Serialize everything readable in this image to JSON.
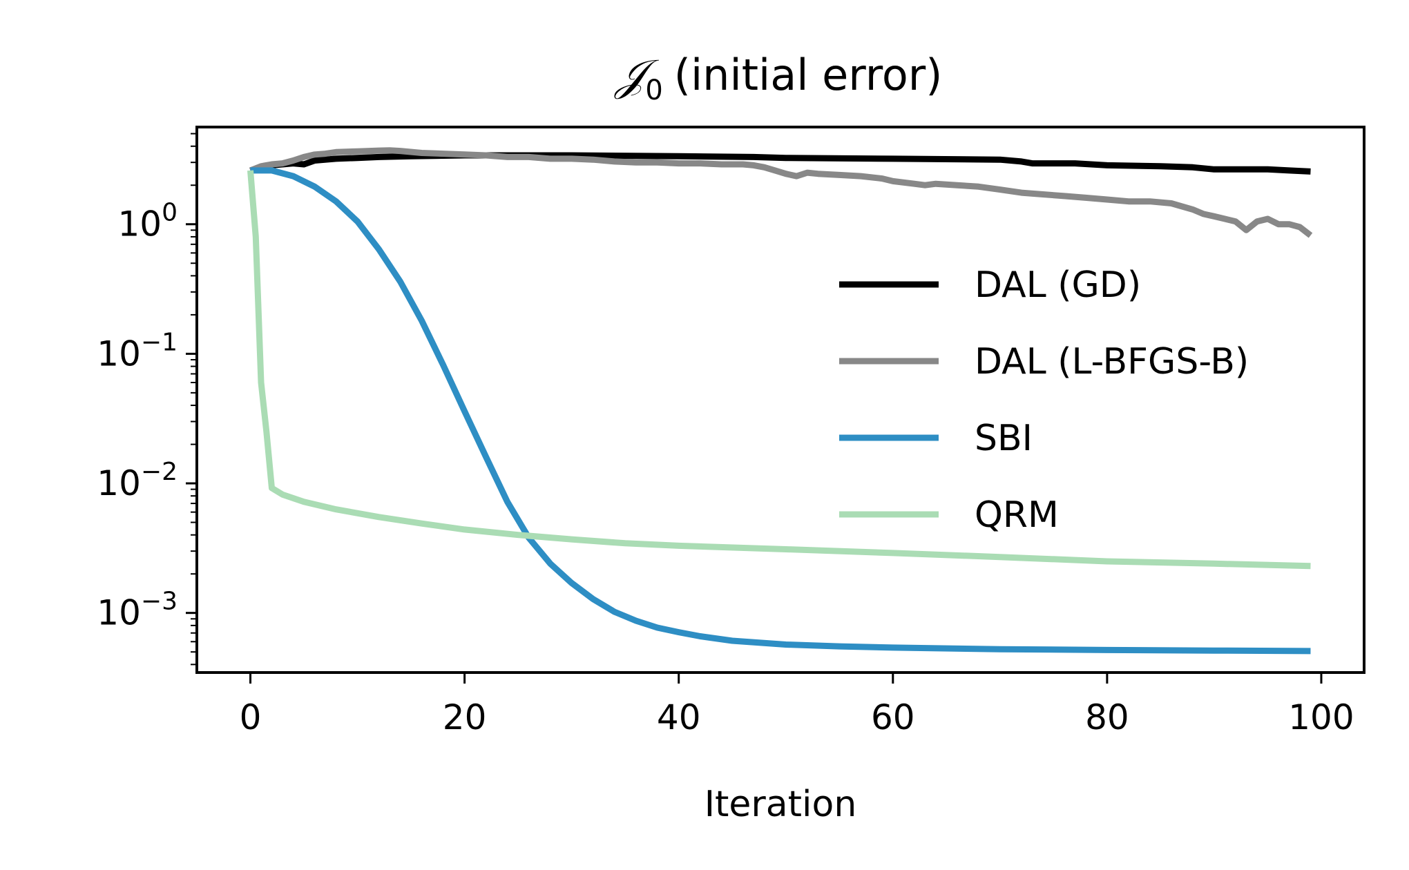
{
  "chart_data": {
    "type": "line",
    "title": {
      "symbol": "𝒥",
      "subscript": "0",
      "text": "(initial error)"
    },
    "xlabel": "Iteration",
    "ylabel": "",
    "xlim": [
      -5,
      104
    ],
    "ylim_log10": [
      -3.46,
      0.75
    ],
    "yscale": "log",
    "grid": false,
    "legend": "center-right",
    "x_ticks": [
      {
        "value": 0,
        "label": "0"
      },
      {
        "value": 20,
        "label": "20"
      },
      {
        "value": 40,
        "label": "40"
      },
      {
        "value": 60,
        "label": "60"
      },
      {
        "value": 80,
        "label": "80"
      },
      {
        "value": 100,
        "label": "100"
      }
    ],
    "y_ticks": [
      {
        "exp": 0,
        "base": "10",
        "power": "0"
      },
      {
        "exp": -1,
        "base": "10",
        "power": "−1"
      },
      {
        "exp": -2,
        "base": "10",
        "power": "−2"
      },
      {
        "exp": -3,
        "base": "10",
        "power": "−3"
      }
    ],
    "series": [
      {
        "name": "DAL (GD)",
        "color": "#000000",
        "points": [
          [
            0,
            2.6
          ],
          [
            1,
            2.75
          ],
          [
            2,
            2.85
          ],
          [
            3,
            2.9
          ],
          [
            4,
            2.95
          ],
          [
            5,
            2.9
          ],
          [
            6,
            3.1
          ],
          [
            8,
            3.2
          ],
          [
            10,
            3.25
          ],
          [
            12,
            3.3
          ],
          [
            15,
            3.35
          ],
          [
            20,
            3.4
          ],
          [
            30,
            3.4
          ],
          [
            40,
            3.35
          ],
          [
            47,
            3.3
          ],
          [
            50,
            3.25
          ],
          [
            60,
            3.2
          ],
          [
            70,
            3.15
          ],
          [
            72,
            3.05
          ],
          [
            73,
            2.95
          ],
          [
            77,
            2.95
          ],
          [
            80,
            2.85
          ],
          [
            85,
            2.8
          ],
          [
            88,
            2.75
          ],
          [
            90,
            2.65
          ],
          [
            95,
            2.65
          ],
          [
            97,
            2.6
          ],
          [
            99,
            2.55
          ]
        ]
      },
      {
        "name": "DAL (L-BFGS-B)",
        "color": "#888888",
        "points": [
          [
            0,
            2.6
          ],
          [
            1,
            2.8
          ],
          [
            2,
            2.9
          ],
          [
            3,
            2.95
          ],
          [
            4,
            3.1
          ],
          [
            5,
            3.3
          ],
          [
            6,
            3.45
          ],
          [
            7,
            3.5
          ],
          [
            8,
            3.6
          ],
          [
            10,
            3.65
          ],
          [
            12,
            3.7
          ],
          [
            13,
            3.72
          ],
          [
            14,
            3.68
          ],
          [
            16,
            3.55
          ],
          [
            18,
            3.5
          ],
          [
            20,
            3.45
          ],
          [
            22,
            3.4
          ],
          [
            24,
            3.3
          ],
          [
            26,
            3.3
          ],
          [
            28,
            3.2
          ],
          [
            30,
            3.2
          ],
          [
            32,
            3.15
          ],
          [
            34,
            3.05
          ],
          [
            36,
            3.0
          ],
          [
            38,
            3.0
          ],
          [
            40,
            2.95
          ],
          [
            42,
            2.95
          ],
          [
            44,
            2.9
          ],
          [
            46,
            2.9
          ],
          [
            47,
            2.85
          ],
          [
            48,
            2.75
          ],
          [
            49,
            2.6
          ],
          [
            50,
            2.45
          ],
          [
            51,
            2.35
          ],
          [
            52,
            2.5
          ],
          [
            53,
            2.45
          ],
          [
            55,
            2.4
          ],
          [
            57,
            2.35
          ],
          [
            59,
            2.25
          ],
          [
            60,
            2.15
          ],
          [
            62,
            2.05
          ],
          [
            63,
            2.0
          ],
          [
            64,
            2.05
          ],
          [
            66,
            2.0
          ],
          [
            68,
            1.95
          ],
          [
            70,
            1.85
          ],
          [
            72,
            1.75
          ],
          [
            74,
            1.7
          ],
          [
            76,
            1.65
          ],
          [
            78,
            1.6
          ],
          [
            80,
            1.55
          ],
          [
            82,
            1.5
          ],
          [
            84,
            1.5
          ],
          [
            86,
            1.45
          ],
          [
            88,
            1.3
          ],
          [
            89,
            1.2
          ],
          [
            90,
            1.15
          ],
          [
            91,
            1.1
          ],
          [
            92,
            1.05
          ],
          [
            93,
            0.9
          ],
          [
            94,
            1.05
          ],
          [
            95,
            1.1
          ],
          [
            96,
            1.0
          ],
          [
            97,
            1.0
          ],
          [
            98,
            0.95
          ],
          [
            99,
            0.82
          ]
        ]
      },
      {
        "name": "SBI",
        "color": "#2e8ec4",
        "points": [
          [
            0,
            2.6
          ],
          [
            2,
            2.6
          ],
          [
            4,
            2.35
          ],
          [
            6,
            1.95
          ],
          [
            8,
            1.5
          ],
          [
            10,
            1.05
          ],
          [
            12,
            0.64
          ],
          [
            14,
            0.36
          ],
          [
            16,
            0.18
          ],
          [
            18,
            0.082
          ],
          [
            20,
            0.036
          ],
          [
            22,
            0.016
          ],
          [
            24,
            0.0072
          ],
          [
            26,
            0.0038
          ],
          [
            28,
            0.0024
          ],
          [
            30,
            0.0017
          ],
          [
            32,
            0.00128
          ],
          [
            34,
            0.00102
          ],
          [
            36,
            0.00087
          ],
          [
            38,
            0.00077
          ],
          [
            40,
            0.00071
          ],
          [
            42,
            0.00066
          ],
          [
            45,
            0.00061
          ],
          [
            50,
            0.00057
          ],
          [
            55,
            0.000552
          ],
          [
            60,
            0.00054
          ],
          [
            70,
            0.000525
          ],
          [
            80,
            0.000517
          ],
          [
            90,
            0.000512
          ],
          [
            99,
            0.000508
          ]
        ]
      },
      {
        "name": "QRM",
        "color": "#aadcb4",
        "points": [
          [
            0,
            2.6
          ],
          [
            0.5,
            0.8
          ],
          [
            1,
            0.06
          ],
          [
            1.5,
            0.025
          ],
          [
            2,
            0.0092
          ],
          [
            3,
            0.0082
          ],
          [
            5,
            0.0072
          ],
          [
            8,
            0.0063
          ],
          [
            12,
            0.0055
          ],
          [
            16,
            0.0049
          ],
          [
            20,
            0.0044
          ],
          [
            25,
            0.004
          ],
          [
            30,
            0.0037
          ],
          [
            35,
            0.00345
          ],
          [
            40,
            0.0033
          ],
          [
            50,
            0.0031
          ],
          [
            60,
            0.0029
          ],
          [
            70,
            0.0027
          ],
          [
            80,
            0.0025
          ],
          [
            90,
            0.0024
          ],
          [
            99,
            0.0023
          ]
        ]
      }
    ]
  }
}
